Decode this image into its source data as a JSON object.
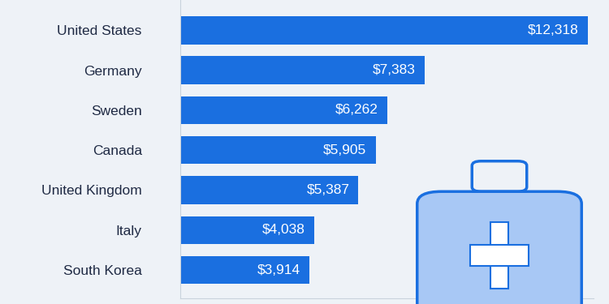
{
  "chart_data": {
    "type": "bar",
    "orientation": "horizontal",
    "categories": [
      "United States",
      "Germany",
      "Sweden",
      "Canada",
      "United Kingdom",
      "Italy",
      "South Korea"
    ],
    "values": [
      12318,
      7383,
      6262,
      5905,
      5387,
      4038,
      3914
    ],
    "value_labels": [
      "$12,318",
      "$7,383",
      "$6,262",
      "$5,905",
      "$5,387",
      "$4,038",
      "$3,914"
    ],
    "color": "#1a6fe0",
    "xlim": [
      0,
      12500
    ],
    "xticks": [],
    "data_labels": true,
    "tick_labels": "y",
    "grid": false
  }
}
